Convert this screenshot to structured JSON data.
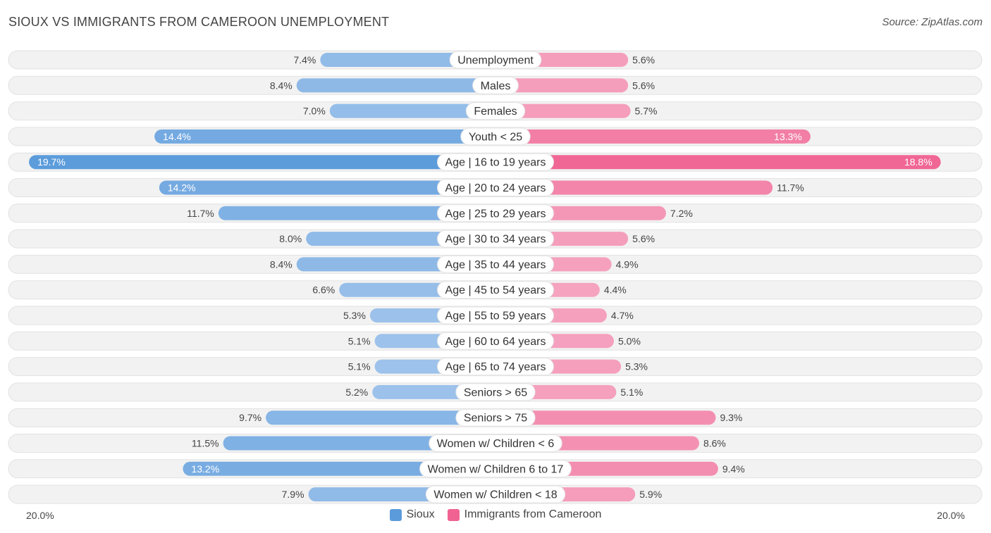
{
  "title": "SIOUX VS IMMIGRANTS FROM CAMEROON UNEMPLOYMENT",
  "source": "Source: ZipAtlas.com",
  "colors": {
    "left_bar": "#5b9bdb",
    "right_bar": "#f06292",
    "row_bg": "#f0f0f0"
  },
  "chart_data": {
    "type": "bar",
    "orientation": "horizontal-diverging",
    "title": "SIOUX VS IMMIGRANTS FROM CAMEROON UNEMPLOYMENT",
    "xlim": [
      -20,
      20
    ],
    "axis_min_label": "20.0%",
    "axis_max_label": "20.0%",
    "categories": [
      "Unemployment",
      "Males",
      "Females",
      "Youth < 25",
      "Age | 16 to 19 years",
      "Age | 20 to 24 years",
      "Age | 25 to 29 years",
      "Age | 30 to 34 years",
      "Age | 35 to 44 years",
      "Age | 45 to 54 years",
      "Age | 55 to 59 years",
      "Age | 60 to 64 years",
      "Age | 65 to 74 years",
      "Seniors > 65",
      "Seniors > 75",
      "Women w/ Children < 6",
      "Women w/ Children 6 to 17",
      "Women w/ Children < 18"
    ],
    "series": [
      {
        "name": "Sioux",
        "side": "left",
        "values": [
          7.4,
          8.4,
          7.0,
          14.4,
          19.7,
          14.2,
          11.7,
          8.0,
          8.4,
          6.6,
          5.3,
          5.1,
          5.1,
          5.2,
          9.7,
          11.5,
          13.2,
          7.9
        ],
        "labels": [
          "7.4%",
          "8.4%",
          "7.0%",
          "14.4%",
          "19.7%",
          "14.2%",
          "11.7%",
          "8.0%",
          "8.4%",
          "6.6%",
          "5.3%",
          "5.1%",
          "5.1%",
          "5.2%",
          "9.7%",
          "11.5%",
          "13.2%",
          "7.9%"
        ]
      },
      {
        "name": "Immigrants from Cameroon",
        "side": "right",
        "values": [
          5.6,
          5.6,
          5.7,
          13.3,
          18.8,
          11.7,
          7.2,
          5.6,
          4.9,
          4.4,
          4.7,
          5.0,
          5.3,
          5.1,
          9.3,
          8.6,
          9.4,
          5.9
        ],
        "labels": [
          "5.6%",
          "5.6%",
          "5.7%",
          "13.3%",
          "18.8%",
          "11.7%",
          "7.2%",
          "5.6%",
          "4.9%",
          "4.4%",
          "4.7%",
          "5.0%",
          "5.3%",
          "5.1%",
          "9.3%",
          "8.6%",
          "9.4%",
          "5.9%"
        ]
      }
    ],
    "legend": [
      "Sioux",
      "Immigrants from Cameroon"
    ],
    "legend_position": "bottom-center"
  }
}
